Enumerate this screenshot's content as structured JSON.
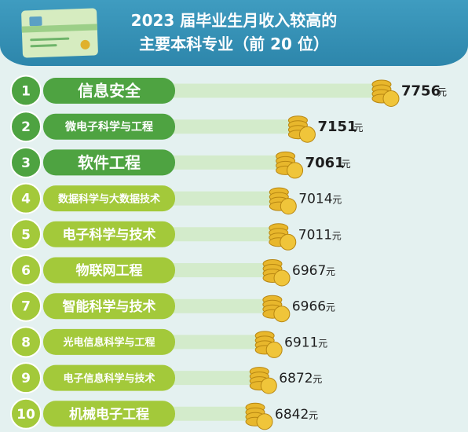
{
  "header": {
    "title_line1": "2023 届毕业生月收入较高的",
    "title_line2": "主要本科专业（前 20 位）"
  },
  "colors": {
    "header": "#3f9cc0",
    "pill_dark": "#4ea341",
    "pill_light": "#a3c93a",
    "track": "#d3ebcb",
    "coin": "#e8b72c"
  },
  "chart_data": {
    "type": "bar",
    "title": "2023 届毕业生月收入较高的主要本科专业（前 20 位）",
    "unit": "元",
    "ranks": [
      "1",
      "2",
      "3",
      "4",
      "5",
      "6",
      "7",
      "8",
      "9",
      "10"
    ],
    "categories": [
      "信息安全",
      "微电子科学与工程",
      "软件工程",
      "数据科学与大数据技术",
      "电子科学与技术",
      "物联网工程",
      "智能科学与技术",
      "光电信息科学与工程",
      "电子信息科学与技术",
      "机械电子工程"
    ],
    "values": [
      7756,
      7151,
      7061,
      7014,
      7011,
      6967,
      6966,
      6911,
      6872,
      6842
    ]
  }
}
